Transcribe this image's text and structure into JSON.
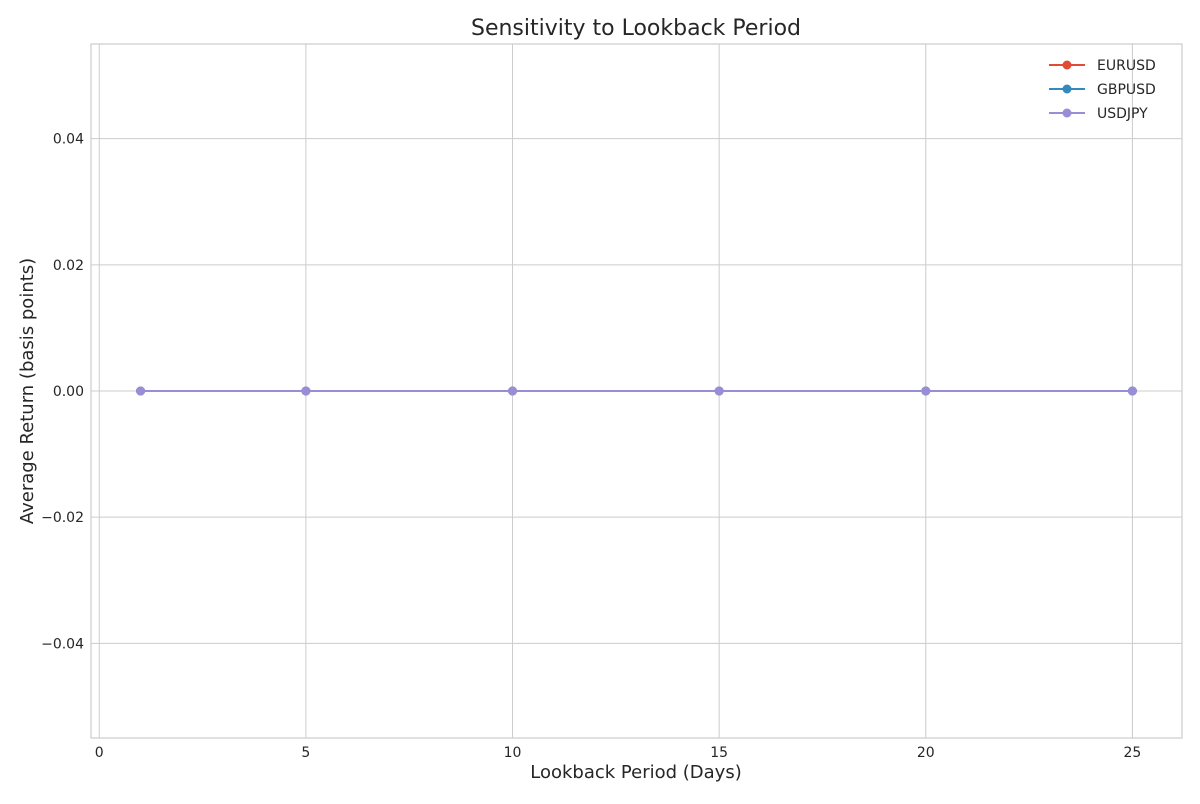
{
  "chart_data": {
    "type": "line",
    "title": "Sensitivity to Lookback Period",
    "xlabel": "Lookback Period (Days)",
    "ylabel": "Average Return (basis points)",
    "x": [
      1,
      5,
      10,
      15,
      20,
      25
    ],
    "series": [
      {
        "name": "EURUSD",
        "color": "#E24A33",
        "values": [
          0,
          0,
          0,
          0,
          0,
          0
        ]
      },
      {
        "name": "GBPUSD",
        "color": "#348ABD",
        "values": [
          0,
          0,
          0,
          0,
          0,
          0
        ]
      },
      {
        "name": "USDJPY",
        "color": "#988ED5",
        "values": [
          0,
          0,
          0,
          0,
          0,
          0
        ]
      }
    ],
    "xlim": [
      -0.2,
      26.2
    ],
    "ylim": [
      -0.055,
      0.055
    ],
    "xticks": [
      0,
      5,
      10,
      15,
      20,
      25
    ],
    "xtick_labels": [
      "0",
      "5",
      "10",
      "15",
      "20",
      "25"
    ],
    "yticks": [
      -0.04,
      -0.02,
      0.0,
      0.02,
      0.04
    ],
    "ytick_labels": [
      "−0.04",
      "−0.02",
      "0.00",
      "0.02",
      "0.04"
    ],
    "grid": true,
    "legend_position": "top-right",
    "marker": "circle"
  }
}
